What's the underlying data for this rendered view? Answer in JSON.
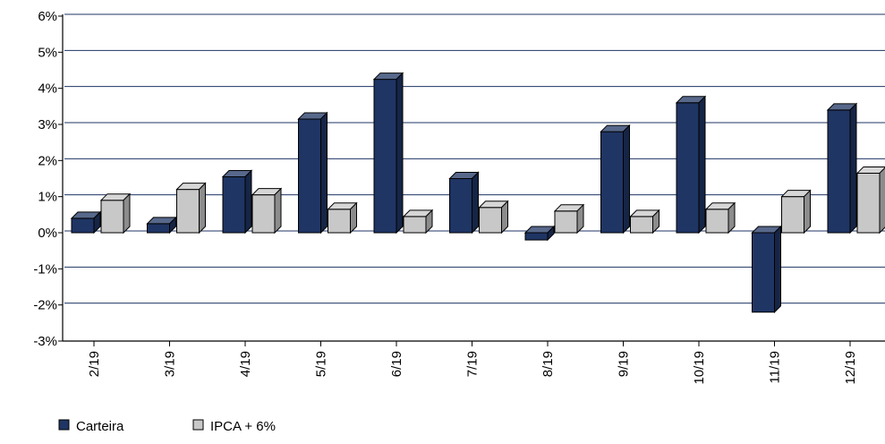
{
  "chart_data": {
    "type": "bar",
    "title": "",
    "xlabel": "",
    "ylabel": "",
    "categories": [
      "2/19",
      "3/19",
      "4/19",
      "5/19",
      "6/19",
      "7/19",
      "8/19",
      "9/19",
      "10/19",
      "11/19",
      "12/19"
    ],
    "series": [
      {
        "name": "Carteira",
        "color": "#1f3564",
        "values": [
          0.4,
          0.25,
          1.55,
          3.15,
          4.25,
          1.5,
          -0.2,
          2.8,
          3.6,
          -2.2,
          3.4
        ]
      },
      {
        "name": "IPCA + 6%",
        "color": "#c8c8c8",
        "values": [
          0.9,
          1.2,
          1.05,
          0.65,
          0.45,
          0.7,
          0.6,
          0.45,
          0.65,
          1.0,
          1.65
        ]
      }
    ],
    "ylim": [
      -3,
      6
    ],
    "yticks": [
      "-3%",
      "-2%",
      "-1%",
      "0%",
      "1%",
      "2%",
      "3%",
      "4%",
      "5%",
      "6%"
    ],
    "grid": true,
    "legend_position": "bottom-left",
    "bar_style": "3d"
  }
}
